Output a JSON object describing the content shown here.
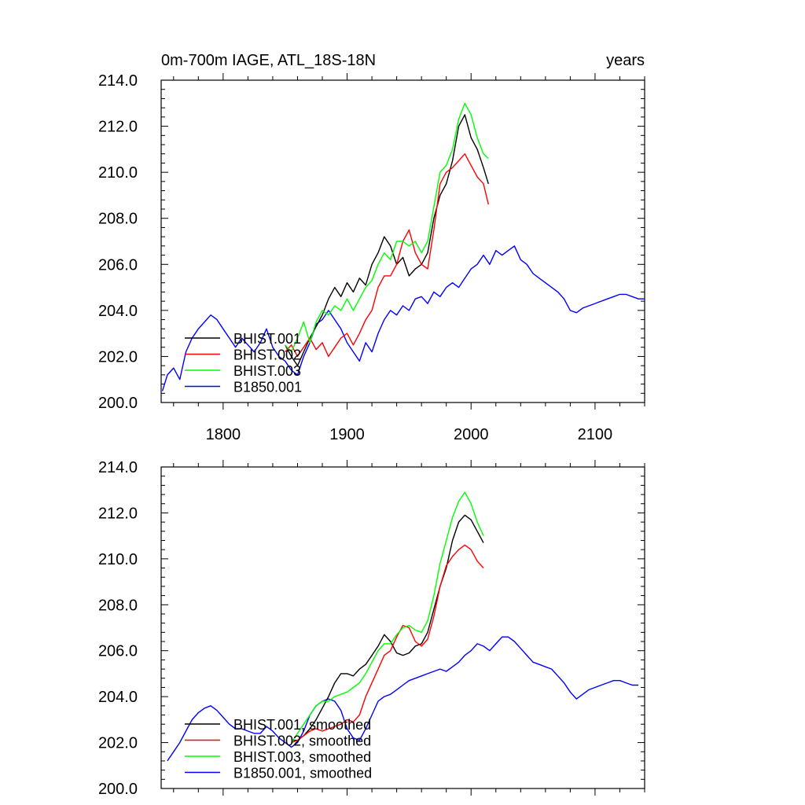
{
  "header": {
    "title_left": "0m-700m IAGE, ATL_18S-18N",
    "title_right": "years"
  },
  "colors": {
    "BHIST.001": "#000000",
    "BHIST.002": "#ff0000",
    "BHIST.003": "#00ff00",
    "B1850.001": "#0000ff"
  },
  "chart_data": [
    {
      "type": "line",
      "panel": "top",
      "title": "0m-700m IAGE, ATL_18S-18N",
      "title_right": "years",
      "xlim": [
        1750,
        2140
      ],
      "ylim": [
        200.0,
        214.0
      ],
      "x_ticks": [
        1800,
        1900,
        2000,
        2100
      ],
      "x_tick_labels": [
        "1800",
        "1900",
        "2000",
        "2100"
      ],
      "y_ticks": [
        200,
        202,
        204,
        206,
        208,
        210,
        212,
        214
      ],
      "y_tick_labels": [
        "200.0",
        "202.0",
        "204.0",
        "206.0",
        "208.0",
        "210.0",
        "212.0",
        "214.0"
      ],
      "legend_position": "bottom-left",
      "series": [
        {
          "name": "BHIST.001",
          "color": "#000000",
          "x": [
            1850,
            1855,
            1860,
            1865,
            1870,
            1875,
            1880,
            1885,
            1890,
            1895,
            1900,
            1905,
            1910,
            1915,
            1920,
            1925,
            1930,
            1935,
            1940,
            1945,
            1950,
            1955,
            1960,
            1965,
            1970,
            1975,
            1980,
            1985,
            1990,
            1995,
            2000,
            2005,
            2010,
            2014
          ],
          "y": [
            202.5,
            202.0,
            201.6,
            202.2,
            202.8,
            203.3,
            203.8,
            204.5,
            205.0,
            204.6,
            205.2,
            204.8,
            205.4,
            205.1,
            206.0,
            206.5,
            207.2,
            206.8,
            206.0,
            206.3,
            205.5,
            205.8,
            206.0,
            206.5,
            208.0,
            209.0,
            209.5,
            210.5,
            212.0,
            212.5,
            211.5,
            211.0,
            210.2,
            209.5
          ]
        },
        {
          "name": "BHIST.002",
          "color": "#ff0000",
          "x": [
            1850,
            1855,
            1860,
            1865,
            1870,
            1875,
            1880,
            1885,
            1890,
            1895,
            1900,
            1905,
            1910,
            1915,
            1920,
            1925,
            1930,
            1935,
            1940,
            1945,
            1950,
            1955,
            1960,
            1965,
            1970,
            1975,
            1980,
            1985,
            1990,
            1995,
            2000,
            2005,
            2010,
            2014
          ],
          "y": [
            202.2,
            202.5,
            202.0,
            202.4,
            202.8,
            202.3,
            202.6,
            202.0,
            202.4,
            202.8,
            203.0,
            202.5,
            203.0,
            203.6,
            204.0,
            205.0,
            205.5,
            205.5,
            206.0,
            207.0,
            207.5,
            206.5,
            206.0,
            205.8,
            207.5,
            209.5,
            210.0,
            210.2,
            210.5,
            210.8,
            210.3,
            209.8,
            209.5,
            208.6
          ]
        },
        {
          "name": "BHIST.003",
          "color": "#00ff00",
          "x": [
            1850,
            1855,
            1860,
            1865,
            1870,
            1875,
            1880,
            1885,
            1890,
            1895,
            1900,
            1905,
            1910,
            1915,
            1920,
            1925,
            1930,
            1935,
            1940,
            1945,
            1950,
            1955,
            1960,
            1965,
            1970,
            1975,
            1980,
            1985,
            1990,
            1995,
            2000,
            2005,
            2010,
            2014
          ],
          "y": [
            202.5,
            202.2,
            202.8,
            203.5,
            202.6,
            203.5,
            204.0,
            203.8,
            204.2,
            204.0,
            204.5,
            204.0,
            204.5,
            205.0,
            205.3,
            206.0,
            206.5,
            206.2,
            207.0,
            207.0,
            206.8,
            207.0,
            206.5,
            207.0,
            208.5,
            210.0,
            210.3,
            211.0,
            212.3,
            213.0,
            212.5,
            211.5,
            210.8,
            210.6
          ]
        },
        {
          "name": "B1850.001",
          "color": "#0000ff",
          "x": [
            1751,
            1755,
            1760,
            1765,
            1770,
            1775,
            1780,
            1785,
            1790,
            1795,
            1800,
            1805,
            1810,
            1815,
            1820,
            1825,
            1830,
            1835,
            1840,
            1845,
            1850,
            1855,
            1860,
            1865,
            1870,
            1875,
            1880,
            1885,
            1890,
            1895,
            1900,
            1905,
            1910,
            1915,
            1920,
            1925,
            1930,
            1935,
            1940,
            1945,
            1950,
            1955,
            1960,
            1965,
            1970,
            1975,
            1980,
            1985,
            1990,
            1995,
            2000,
            2005,
            2010,
            2015,
            2020,
            2025,
            2030,
            2035,
            2040,
            2045,
            2050,
            2055,
            2060,
            2065,
            2070,
            2075,
            2080,
            2085,
            2090,
            2095,
            2100,
            2105,
            2110,
            2115,
            2120,
            2125,
            2130,
            2135,
            2140
          ],
          "y": [
            200.5,
            201.2,
            201.5,
            201.0,
            202.2,
            202.8,
            203.2,
            203.5,
            203.8,
            203.6,
            203.2,
            202.8,
            202.4,
            202.8,
            202.5,
            202.2,
            202.6,
            203.2,
            202.4,
            202.0,
            201.8,
            201.4,
            201.2,
            202.0,
            202.6,
            203.4,
            203.6,
            204.0,
            203.6,
            203.2,
            202.6,
            202.2,
            201.8,
            202.6,
            202.2,
            203.0,
            203.6,
            204.0,
            203.8,
            204.2,
            204.0,
            204.5,
            204.6,
            204.3,
            204.8,
            204.6,
            205.0,
            205.2,
            205.0,
            205.4,
            205.8,
            206.0,
            206.4,
            206.0,
            206.6,
            206.4,
            206.6,
            206.8,
            206.2,
            206.0,
            205.6,
            205.4,
            205.2,
            205.0,
            204.8,
            204.5,
            204.0,
            203.9,
            204.1,
            204.2,
            204.3,
            204.4,
            204.5,
            204.6,
            204.7,
            204.7,
            204.6,
            204.5,
            204.5
          ]
        }
      ]
    },
    {
      "type": "line",
      "panel": "bottom",
      "xlim": [
        1750,
        2140
      ],
      "ylim": [
        200.0,
        214.0
      ],
      "x_ticks": [
        1800,
        1900,
        2000,
        2100
      ],
      "y_ticks": [
        200,
        202,
        204,
        206,
        208,
        210,
        212,
        214
      ],
      "y_tick_labels": [
        "200.0",
        "202.0",
        "204.0",
        "206.0",
        "208.0",
        "210.0",
        "212.0",
        "214.0"
      ],
      "legend_position": "bottom-left",
      "series": [
        {
          "name": "BHIST.001, smoothed",
          "color": "#000000",
          "x": [
            1855,
            1860,
            1865,
            1870,
            1875,
            1880,
            1885,
            1890,
            1895,
            1900,
            1905,
            1910,
            1915,
            1920,
            1925,
            1930,
            1935,
            1940,
            1945,
            1950,
            1955,
            1960,
            1965,
            1970,
            1975,
            1980,
            1985,
            1990,
            1995,
            2000,
            2005,
            2010
          ],
          "y": [
            202.1,
            202.1,
            202.3,
            202.6,
            203.0,
            203.5,
            204.0,
            204.6,
            205.0,
            205.0,
            204.9,
            205.2,
            205.4,
            205.8,
            206.2,
            206.7,
            206.4,
            205.9,
            205.8,
            205.9,
            206.2,
            206.3,
            206.8,
            207.8,
            208.8,
            209.6,
            210.8,
            211.6,
            211.9,
            211.7,
            211.2,
            210.7
          ]
        },
        {
          "name": "BHIST.002, smoothed",
          "color": "#ff0000",
          "x": [
            1855,
            1860,
            1865,
            1870,
            1875,
            1880,
            1885,
            1890,
            1895,
            1900,
            1905,
            1910,
            1915,
            1920,
            1925,
            1930,
            1935,
            1940,
            1945,
            1950,
            1955,
            1960,
            1965,
            1970,
            1975,
            1980,
            1985,
            1990,
            1995,
            2000,
            2005,
            2010
          ],
          "y": [
            202.0,
            202.1,
            202.3,
            202.5,
            202.6,
            202.5,
            202.6,
            202.7,
            202.8,
            203.0,
            202.9,
            203.2,
            204.0,
            204.6,
            205.2,
            205.8,
            206.0,
            206.6,
            207.1,
            207.0,
            206.4,
            206.2,
            206.5,
            207.5,
            208.8,
            209.7,
            210.1,
            210.4,
            210.6,
            210.4,
            209.9,
            209.6
          ]
        },
        {
          "name": "BHIST.003, smoothed",
          "color": "#00ff00",
          "x": [
            1855,
            1860,
            1865,
            1870,
            1875,
            1880,
            1885,
            1890,
            1895,
            1900,
            1905,
            1910,
            1915,
            1920,
            1925,
            1930,
            1935,
            1940,
            1945,
            1950,
            1955,
            1960,
            1965,
            1970,
            1975,
            1980,
            1985,
            1990,
            1995,
            2000,
            2005,
            2010
          ],
          "y": [
            202.0,
            202.4,
            202.8,
            203.2,
            203.6,
            203.8,
            203.8,
            204.0,
            204.1,
            204.2,
            204.4,
            204.6,
            205.0,
            205.5,
            206.0,
            206.3,
            206.3,
            206.7,
            207.0,
            207.1,
            206.9,
            206.8,
            207.3,
            208.4,
            209.8,
            210.8,
            211.8,
            212.5,
            212.9,
            212.4,
            211.6,
            211.0
          ]
        },
        {
          "name": "B1850.001, smoothed",
          "color": "#0000ff",
          "x": [
            1755,
            1760,
            1765,
            1770,
            1775,
            1780,
            1785,
            1790,
            1795,
            1800,
            1805,
            1810,
            1815,
            1820,
            1825,
            1830,
            1835,
            1840,
            1845,
            1850,
            1855,
            1860,
            1865,
            1870,
            1875,
            1880,
            1885,
            1890,
            1895,
            1900,
            1905,
            1910,
            1915,
            1920,
            1925,
            1930,
            1935,
            1940,
            1945,
            1950,
            1955,
            1960,
            1965,
            1970,
            1975,
            1980,
            1985,
            1990,
            1995,
            2000,
            2005,
            2010,
            2015,
            2020,
            2025,
            2030,
            2035,
            2040,
            2045,
            2050,
            2055,
            2060,
            2065,
            2070,
            2075,
            2080,
            2085,
            2090,
            2095,
            2100,
            2105,
            2110,
            2115,
            2120,
            2125,
            2130,
            2135
          ],
          "y": [
            201.2,
            201.6,
            202.0,
            202.5,
            203.0,
            203.3,
            203.5,
            203.6,
            203.4,
            203.1,
            202.8,
            202.6,
            202.6,
            202.5,
            202.4,
            202.4,
            202.7,
            202.5,
            202.2,
            202.0,
            201.8,
            202.0,
            202.5,
            203.2,
            203.6,
            203.8,
            203.9,
            203.8,
            203.4,
            202.6,
            202.2,
            202.1,
            202.6,
            203.2,
            203.8,
            204.0,
            204.1,
            204.3,
            204.5,
            204.7,
            204.8,
            204.9,
            205.0,
            205.1,
            205.2,
            205.1,
            205.3,
            205.5,
            205.8,
            206.0,
            206.3,
            206.2,
            206.0,
            206.3,
            206.6,
            206.6,
            206.4,
            206.1,
            205.8,
            205.5,
            205.4,
            205.3,
            205.2,
            204.9,
            204.6,
            204.2,
            203.9,
            204.1,
            204.3,
            204.4,
            204.5,
            204.6,
            204.7,
            204.7,
            204.6,
            204.5,
            204.5
          ]
        }
      ]
    }
  ]
}
